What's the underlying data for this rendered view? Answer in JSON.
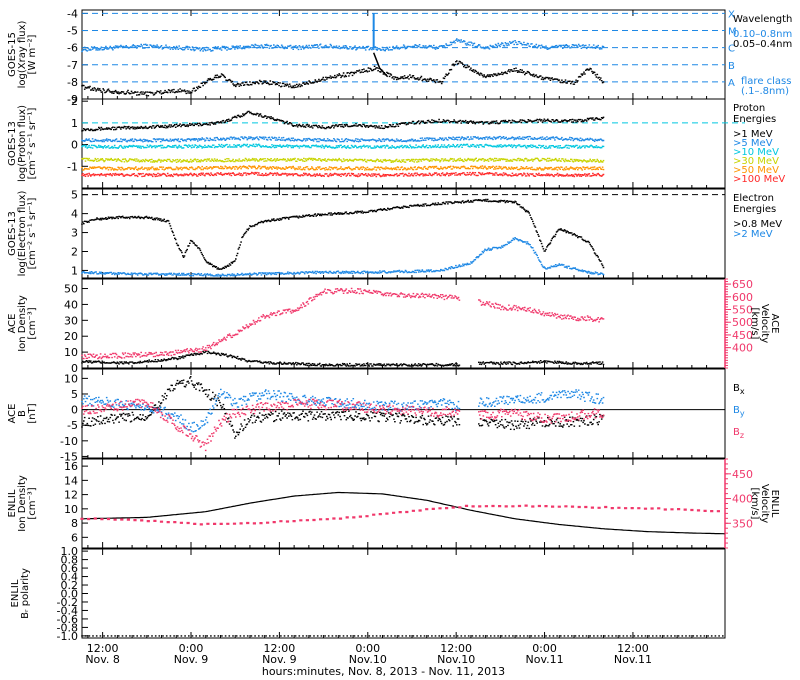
{
  "figure": {
    "xlabel": "hours:minutes, Nov.  8, 2013 - Nov. 11, 2013",
    "x_ticks": [
      {
        "time": "12:00",
        "date": "Nov. 8"
      },
      {
        "time": "0:00",
        "date": "Nov. 9"
      },
      {
        "time": "12:00",
        "date": "Nov. 9"
      },
      {
        "time": "0:00",
        "date": "Nov.10"
      },
      {
        "time": "12:00",
        "date": "Nov.10"
      },
      {
        "time": "0:00",
        "date": "Nov.11"
      },
      {
        "time": "12:00",
        "date": "Nov.11"
      }
    ],
    "x_range_hours": [
      -2.8,
      84.5
    ],
    "data_end_hour": 68.5,
    "data_gaps_hours": [
      [
        48.5,
        51.0
      ]
    ]
  },
  "colors": {
    "black": "#000000",
    "blue": "#1e88e5",
    "xray_short": "#1565c0",
    "pink": "#f0386b",
    "cyan": "#00c8e0",
    "green": "#22c55e",
    "yellow": "#c8d400",
    "orange": "#ff9500",
    "red": "#ff2a2a"
  },
  "chart_data": [
    {
      "id": "goes15-xray",
      "type": "line",
      "ylabel": [
        "GOES-15",
        "log(Xray flux)",
        "[W m⁻²]"
      ],
      "ylim": [
        -9,
        -3.8
      ],
      "yticks": [
        -9,
        -8,
        -7,
        -6,
        -5,
        -4
      ],
      "legend": {
        "title": "Wavelength",
        "entries": [
          {
            "label": "0.10–0.8nm",
            "color": "blue"
          },
          {
            "label": "0.05–0.4nm",
            "color": "black"
          }
        ]
      },
      "flare_class_note": [
        "flare class",
        "(.1–.8nm)"
      ],
      "flare_levels": [
        {
          "label": "A",
          "value": -8
        },
        {
          "label": "B",
          "value": -7
        },
        {
          "label": "C",
          "value": -6
        },
        {
          "label": "M",
          "value": -5
        },
        {
          "label": "X",
          "value": -4
        }
      ],
      "series": [
        {
          "name": "0.10–0.8nm",
          "color": "blue",
          "style": "dots",
          "x": [
            -2.8,
            2,
            6,
            10,
            14,
            18,
            22,
            26,
            30,
            34,
            38,
            42,
            46,
            48,
            52,
            56,
            60,
            64,
            68
          ],
          "y": [
            -6.1,
            -6.0,
            -5.9,
            -6.0,
            -6.1,
            -6.0,
            -5.9,
            -6.0,
            -5.9,
            -6.0,
            -6.1,
            -5.9,
            -6.0,
            -5.6,
            -6.0,
            -5.7,
            -6.0,
            -5.9,
            -6.0
          ]
        },
        {
          "name": "0.05–0.4nm",
          "color": "black",
          "style": "dots",
          "x": [
            -2.8,
            0,
            3,
            6,
            10,
            12,
            14,
            16,
            18,
            22,
            26,
            30,
            34,
            37,
            40,
            42,
            46,
            48,
            52,
            56,
            60,
            64,
            66,
            68
          ],
          "y": [
            -8.3,
            -8.5,
            -8.6,
            -8.7,
            -8.5,
            -8.6,
            -8.0,
            -7.6,
            -8.2,
            -8.0,
            -8.3,
            -7.8,
            -7.5,
            -7.2,
            -7.8,
            -7.7,
            -8.0,
            -6.8,
            -7.7,
            -7.3,
            -7.8,
            -8.1,
            -7.2,
            -8.0
          ]
        }
      ],
      "spikes": [
        {
          "x": 36.8,
          "y": -4.0
        }
      ]
    },
    {
      "id": "goes13-proton",
      "type": "line",
      "ylabel": [
        "GOES-13",
        "log(Proton flux)",
        "[cm⁻² s⁻¹ sr⁻¹]"
      ],
      "ylim": [
        -2,
        2.1
      ],
      "yticks": [
        -1,
        0,
        1,
        2
      ],
      "threshold": 1,
      "legend": {
        "title": [
          "Proton",
          "Energies"
        ],
        "entries": [
          {
            "label": ">1 MeV",
            "color": "black"
          },
          {
            "label": ">5 MeV",
            "color": "blue"
          },
          {
            "label": ">10 MeV",
            "color": "cyan"
          },
          {
            "label": ">30 MeV",
            "color": "yellow"
          },
          {
            "label": ">50 MeV",
            "color": "orange"
          },
          {
            "label": ">100 MeV",
            "color": "red"
          }
        ]
      },
      "series": [
        {
          "name": ">1 MeV",
          "color": "black",
          "style": "dots",
          "x": [
            -2.8,
            6,
            12,
            16,
            20,
            26,
            30,
            34,
            38,
            42,
            46,
            52,
            58,
            64,
            68
          ],
          "y": [
            0.7,
            0.8,
            0.9,
            1.0,
            1.5,
            0.9,
            0.8,
            0.9,
            0.8,
            1.0,
            1.1,
            1.0,
            1.1,
            1.1,
            1.2
          ]
        },
        {
          "name": ">5 MeV",
          "color": "blue",
          "style": "dots",
          "x": [
            -2.8,
            10,
            20,
            30,
            40,
            50,
            60,
            68
          ],
          "y": [
            0.2,
            0.2,
            0.3,
            0.2,
            0.2,
            0.3,
            0.3,
            0.2
          ]
        },
        {
          "name": ">10 MeV",
          "color": "cyan",
          "style": "dots",
          "x": [
            -2.8,
            10,
            20,
            30,
            40,
            50,
            60,
            68
          ],
          "y": [
            -0.1,
            -0.1,
            -0.05,
            -0.1,
            -0.1,
            -0.05,
            -0.1,
            -0.1
          ]
        },
        {
          "name": ">30 MeV",
          "color": "yellow",
          "style": "dots",
          "x": [
            -2.8,
            10,
            20,
            30,
            40,
            50,
            60,
            68
          ],
          "y": [
            -0.7,
            -0.75,
            -0.7,
            -0.7,
            -0.75,
            -0.7,
            -0.7,
            -0.75
          ]
        },
        {
          "name": ">50 MeV",
          "color": "orange",
          "style": "dots",
          "x": [
            -2.8,
            10,
            20,
            30,
            40,
            50,
            60,
            68
          ],
          "y": [
            -1.1,
            -1.1,
            -1.05,
            -1.1,
            -1.1,
            -1.05,
            -1.1,
            -1.1
          ]
        },
        {
          "name": ">100 MeV",
          "color": "red",
          "style": "dots",
          "x": [
            -2.8,
            10,
            20,
            30,
            40,
            50,
            60,
            68
          ],
          "y": [
            -1.4,
            -1.4,
            -1.35,
            -1.4,
            -1.4,
            -1.35,
            -1.4,
            -1.4
          ]
        }
      ]
    },
    {
      "id": "goes13-electron",
      "type": "line",
      "ylabel": [
        "GOES-13",
        "log(Electron flux)",
        "[cm⁻² s⁻¹ sr⁻¹]"
      ],
      "ylim": [
        0.6,
        5.3
      ],
      "yticks": [
        1,
        2,
        3,
        4,
        5
      ],
      "threshold": 5,
      "legend": {
        "title": [
          "Electron",
          "Energies"
        ],
        "entries": [
          {
            "label": ">0.8 MeV",
            "color": "black"
          },
          {
            "label": ">2 MeV",
            "color": "blue"
          }
        ]
      },
      "series": [
        {
          "name": ">0.8 MeV",
          "color": "black",
          "style": "dots",
          "x": [
            -2.8,
            -1,
            2,
            6,
            9,
            10,
            11,
            12,
            13,
            14,
            16,
            18,
            19,
            20,
            22,
            28,
            36,
            42,
            48,
            52,
            56,
            58,
            60,
            62,
            64,
            66,
            68
          ],
          "y": [
            3.5,
            3.7,
            3.8,
            3.8,
            3.6,
            2.5,
            1.7,
            2.6,
            2.2,
            1.5,
            1.0,
            1.5,
            2.8,
            3.3,
            3.6,
            3.9,
            4.1,
            4.4,
            4.6,
            4.7,
            4.6,
            4.0,
            2.0,
            3.2,
            2.9,
            2.5,
            1.2
          ]
        },
        {
          "name": ">2 MeV",
          "color": "blue",
          "style": "dots",
          "x": [
            -2.8,
            4,
            10,
            16,
            20,
            24,
            30,
            36,
            42,
            46,
            50,
            52,
            54,
            56,
            58,
            60,
            62,
            64,
            66,
            68
          ],
          "y": [
            0.9,
            0.8,
            0.8,
            0.75,
            0.8,
            0.85,
            0.9,
            0.9,
            0.95,
            1.0,
            1.4,
            2.1,
            2.2,
            2.7,
            2.4,
            1.1,
            1.3,
            1.1,
            0.9,
            0.8
          ]
        }
      ]
    },
    {
      "id": "ace-density-velocity",
      "type": "line",
      "ylabel": [
        "ACE",
        "Ion Density",
        "[cm⁻³]"
      ],
      "ylim": [
        0,
        56
      ],
      "yticks": [
        0,
        10,
        20,
        30,
        40,
        50
      ],
      "right_axis": {
        "ylabel": [
          "ACE",
          "Velocity",
          "[km/s]"
        ],
        "ylim": [
          320,
          670
        ],
        "yticks": [
          400,
          450,
          500,
          550,
          600,
          650
        ]
      },
      "series": [
        {
          "name": "Density",
          "color": "black",
          "style": "dots",
          "axis": "left",
          "x": [
            -2.8,
            4,
            10,
            12,
            14,
            18,
            20,
            24,
            30,
            40,
            46,
            48.5,
            51,
            56,
            60,
            64,
            68
          ],
          "y": [
            4,
            3,
            6,
            8,
            10,
            7,
            4,
            3,
            2,
            2,
            2,
            2,
            3,
            3,
            4,
            3,
            3
          ]
        },
        {
          "name": "Velocity",
          "color": "pink",
          "style": "dots",
          "axis": "right",
          "x": [
            -2.8,
            4,
            10,
            14,
            18,
            22,
            26,
            30,
            34,
            38,
            42,
            46,
            48.5,
            51,
            54,
            58,
            62,
            66,
            68
          ],
          "y": [
            365,
            370,
            380,
            395,
            455,
            525,
            545,
            620,
            625,
            610,
            605,
            600,
            595,
            580,
            560,
            550,
            520,
            515,
            510
          ]
        }
      ]
    },
    {
      "id": "ace-bfield",
      "type": "line",
      "ylabel": [
        "ACE",
        "B",
        "[nT]"
      ],
      "ylim": [
        -15.5,
        13
      ],
      "yticks": [
        -15,
        -10,
        -5,
        0,
        5,
        10
      ],
      "zero_line": true,
      "legend": {
        "entries": [
          {
            "label": "B_x",
            "color": "black"
          },
          {
            "label": "B_y",
            "color": "blue"
          },
          {
            "label": "B_z",
            "color": "pink"
          }
        ]
      },
      "series": [
        {
          "name": "Bx",
          "color": "black",
          "style": "dots",
          "x": [
            -2.8,
            2,
            6,
            8,
            10,
            12,
            14,
            16,
            18,
            20,
            24,
            30,
            36,
            42,
            48.5,
            51,
            56,
            60,
            64,
            68
          ],
          "y": [
            -4,
            -3,
            -2,
            3,
            8,
            9,
            6,
            2,
            -8,
            -3,
            -2,
            -2,
            -2,
            -3,
            -4,
            -4,
            -5,
            -4,
            -4,
            -3
          ]
        },
        {
          "name": "By",
          "color": "blue",
          "style": "dots",
          "x": [
            -2.8,
            2,
            6,
            10,
            12,
            14,
            16,
            18,
            22,
            28,
            34,
            40,
            46,
            48.5,
            51,
            56,
            60,
            64,
            68
          ],
          "y": [
            3,
            2,
            1,
            -2,
            -6,
            -4,
            6,
            2,
            5,
            3,
            2,
            1,
            2,
            1,
            2,
            3,
            4,
            5,
            3
          ]
        },
        {
          "name": "Bz",
          "color": "pink",
          "style": "dots",
          "x": [
            -2.8,
            2,
            6,
            10,
            12,
            14,
            16,
            18,
            22,
            28,
            34,
            40,
            46,
            48.5,
            51,
            56,
            60,
            64,
            68
          ],
          "y": [
            0,
            1,
            2,
            -5,
            -8,
            -12,
            -4,
            -1,
            1,
            2,
            1,
            0,
            -1,
            0,
            -2,
            -1,
            -3,
            -2,
            -1
          ]
        }
      ]
    },
    {
      "id": "enlil-density-velocity",
      "type": "line",
      "ylabel": [
        "ENLIL",
        "Ion Density",
        "[cm⁻³]"
      ],
      "ylim": [
        4.5,
        17
      ],
      "yticks": [
        6,
        8,
        10,
        12,
        14,
        16
      ],
      "right_axis": {
        "ylabel": [
          "ENLIL",
          "Velocity",
          "[km/s]"
        ],
        "ylim": [
          300,
          480
        ],
        "yticks": [
          350,
          400,
          450
        ]
      },
      "series": [
        {
          "name": "Density",
          "color": "black",
          "style": "line",
          "axis": "left",
          "x": [
            -2.8,
            6,
            14,
            20,
            26,
            32,
            38,
            44,
            50,
            56,
            62,
            68,
            74,
            80,
            84.5
          ],
          "y": [
            8.6,
            8.8,
            9.6,
            10.8,
            11.8,
            12.3,
            12.1,
            11.2,
            9.8,
            8.6,
            7.8,
            7.2,
            6.8,
            6.6,
            6.5
          ]
        },
        {
          "name": "Velocity",
          "color": "pink",
          "style": "dots",
          "axis": "right",
          "x": [
            -2.8,
            6,
            14,
            20,
            26,
            32,
            38,
            44,
            50,
            56,
            62,
            68,
            74,
            80,
            84.5
          ],
          "y": [
            360,
            355,
            348,
            350,
            355,
            360,
            368,
            378,
            385,
            385,
            384,
            382,
            380,
            377,
            374
          ]
        }
      ]
    },
    {
      "id": "enlil-polarity",
      "type": "line",
      "ylabel": [
        "ENLIL",
        "Bᵣ polarity"
      ],
      "ylim": [
        -1.05,
        1.05
      ],
      "yticks": [
        -1.0,
        -0.8,
        -0.6,
        -0.4,
        -0.2,
        0.0,
        0.2,
        0.4,
        0.6,
        0.8,
        1.0
      ],
      "series": [
        {
          "name": "polarity",
          "color": "black",
          "style": "dots",
          "x": [
            -2.8,
            84.5
          ],
          "y": [
            -1.0,
            -1.0
          ]
        }
      ]
    }
  ]
}
